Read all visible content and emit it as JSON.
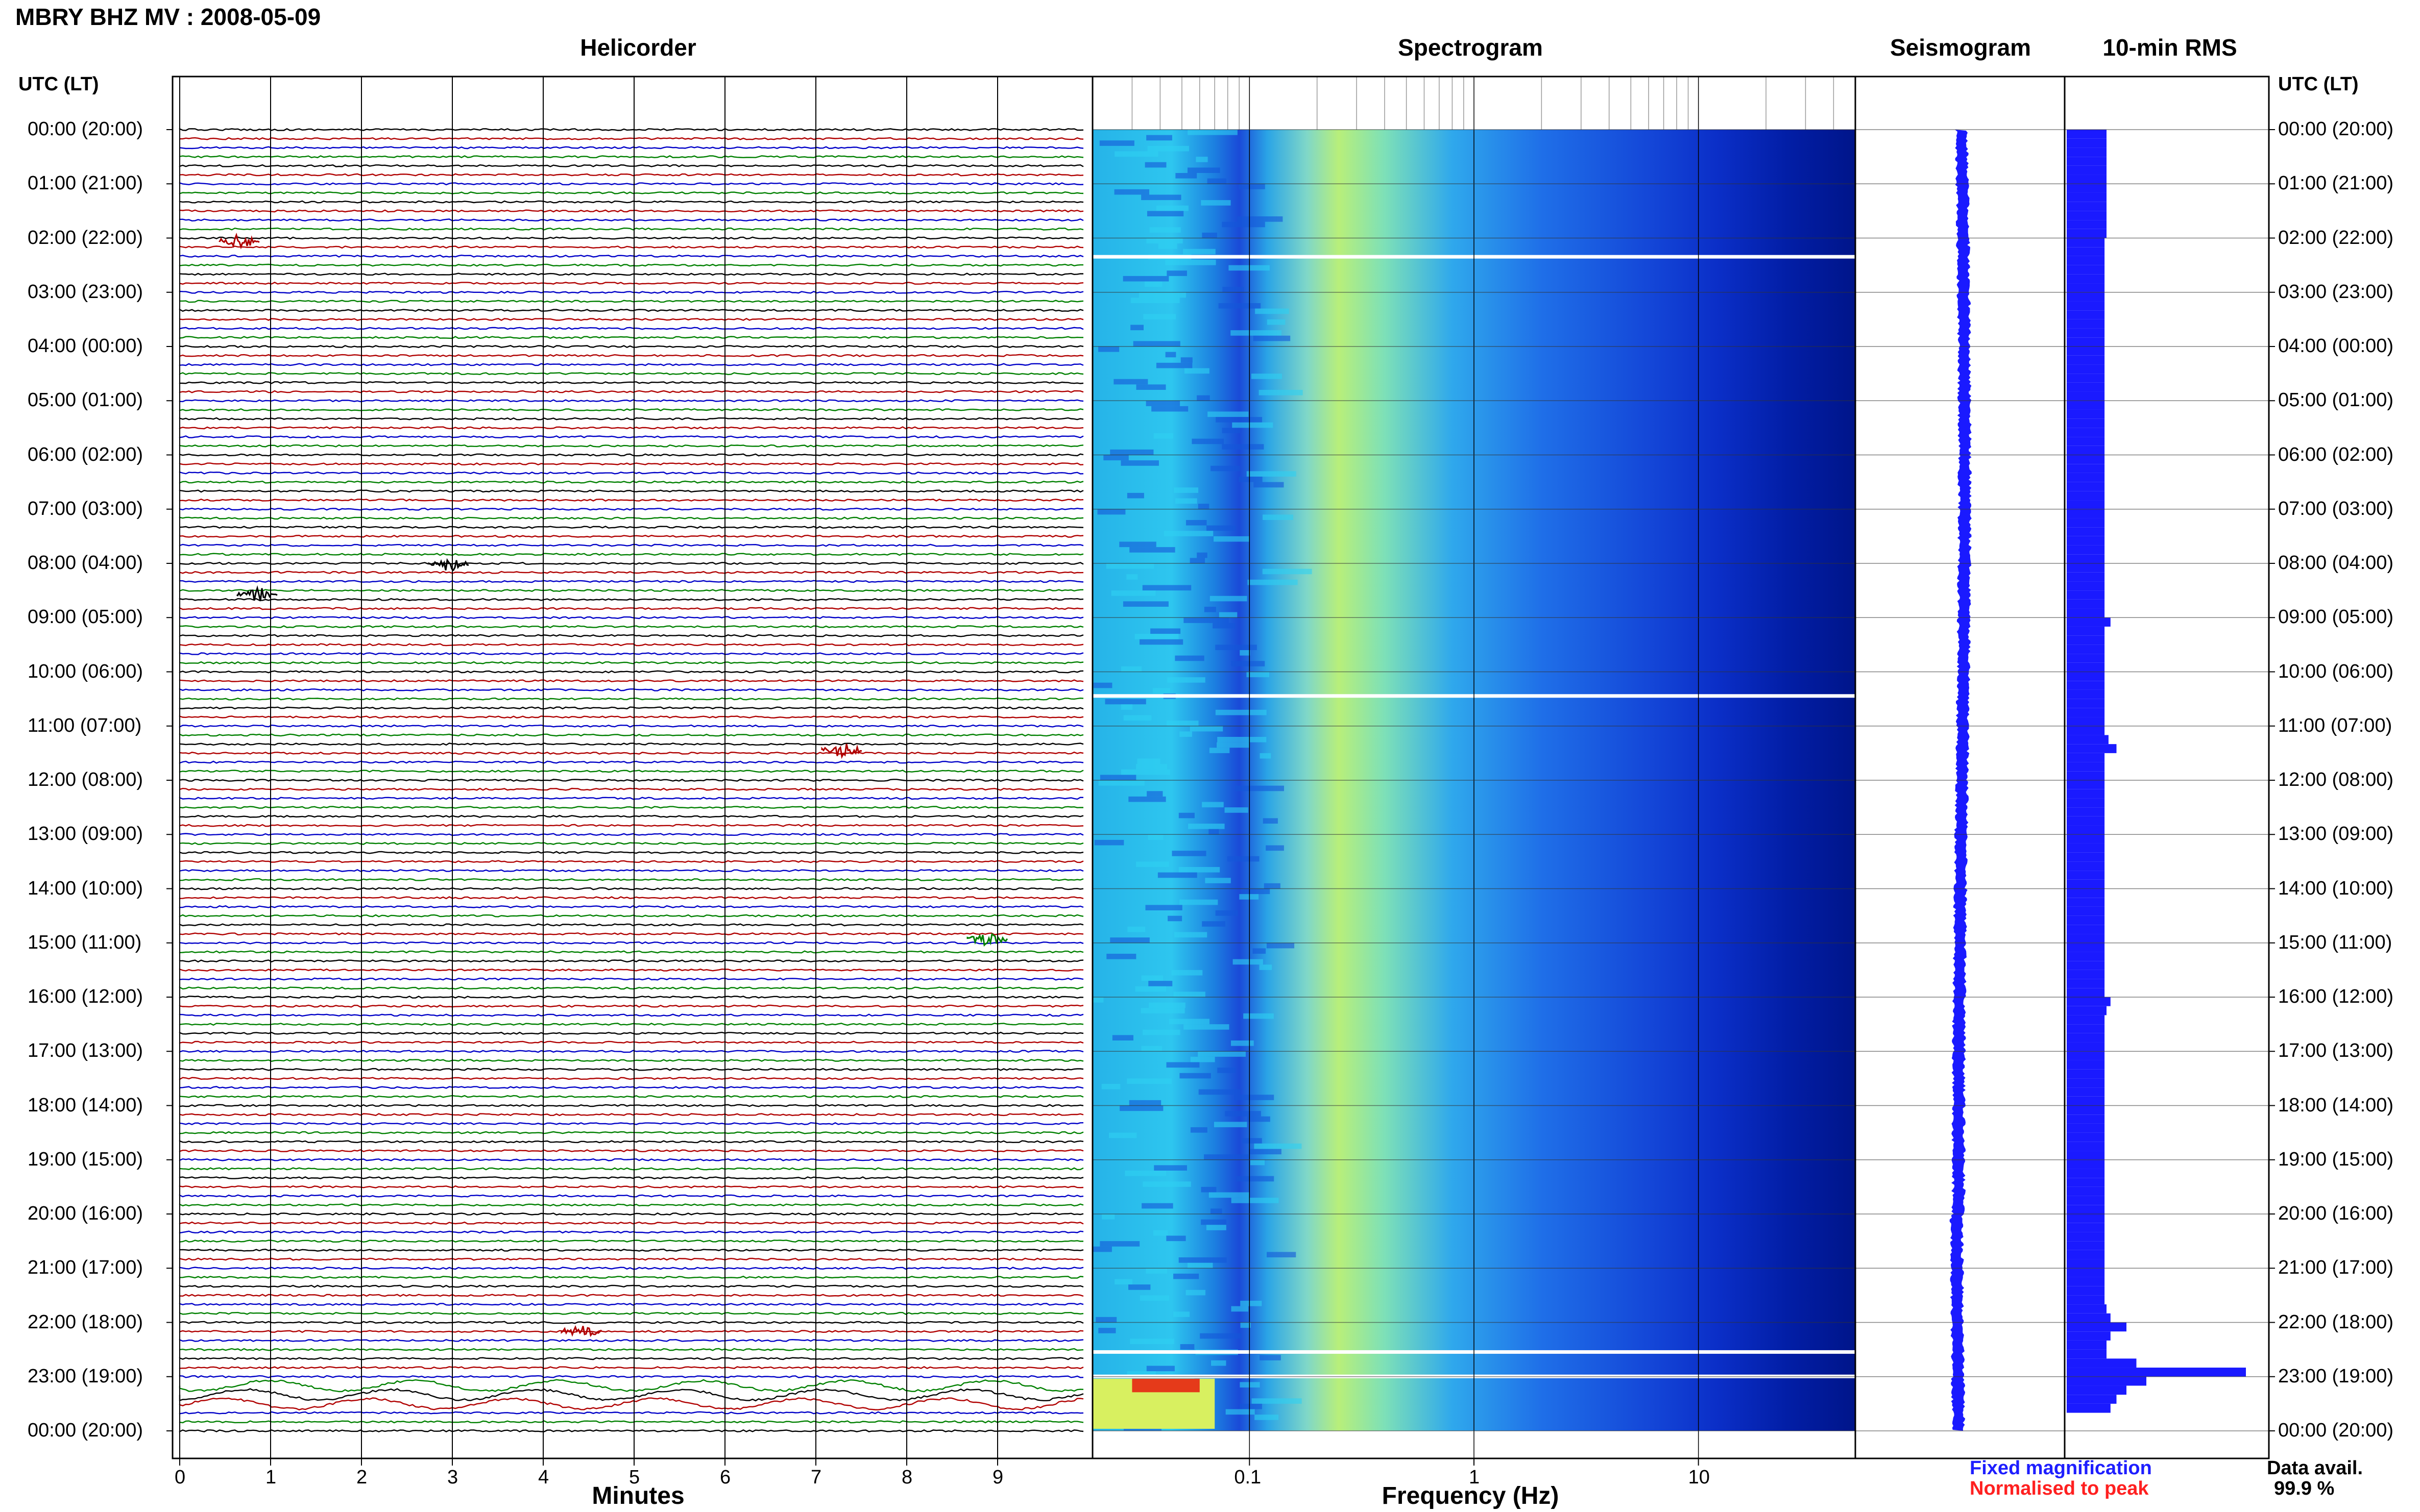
{
  "header": {
    "title": "MBRY BHZ MV : 2008-05-09"
  },
  "panels": {
    "helicorder": "Helicorder",
    "spectrogram": "Spectrogram",
    "seismogram": "Seismogram",
    "rms": "10-min RMS"
  },
  "axis_header_left": "UTC (LT)",
  "axis_header_right": "UTC (LT)",
  "time_labels": [
    "00:00 (20:00)",
    "01:00 (21:00)",
    "02:00 (22:00)",
    "03:00 (23:00)",
    "04:00 (00:00)",
    "05:00 (01:00)",
    "06:00 (02:00)",
    "07:00 (03:00)",
    "08:00 (04:00)",
    "09:00 (05:00)",
    "10:00 (06:00)",
    "11:00 (07:00)",
    "12:00 (08:00)",
    "13:00 (09:00)",
    "14:00 (10:00)",
    "15:00 (11:00)",
    "16:00 (12:00)",
    "17:00 (13:00)",
    "18:00 (14:00)",
    "19:00 (15:00)",
    "20:00 (16:00)",
    "21:00 (17:00)",
    "22:00 (18:00)",
    "23:00 (19:00)",
    "00:00 (20:00)"
  ],
  "helicorder_xaxis": {
    "label": "Minutes",
    "ticks": [
      "0",
      "1",
      "2",
      "3",
      "4",
      "5",
      "6",
      "7",
      "8",
      "9"
    ]
  },
  "spectrogram_xaxis": {
    "label": "Frequency (Hz)",
    "ticks": [
      "0.1",
      "1",
      "10"
    ],
    "scale": "log"
  },
  "legend": {
    "fixed": "Fixed magnification",
    "normalised": "Normalised to peak"
  },
  "availability": {
    "label": "Data avail.",
    "value": "99.9 %"
  },
  "colors": {
    "trace_cycle": [
      "#000000",
      "#b00000",
      "#0000c8",
      "#008000"
    ],
    "rms": "#1a1aff",
    "seismogram": "#1a1aff"
  },
  "chart_data": {
    "type": "heatmap",
    "title": "MBRY BHZ MV : 2008-05-09",
    "helicorder_rows_per_hour": 6,
    "helicorder_minutes_per_row": 10,
    "spectrogram_freq_range_hz": [
      0.02,
      50
    ],
    "events": [
      {
        "time": "02:10",
        "panel": "helicorder"
      },
      {
        "time": "08:50",
        "panel": "helicorder"
      },
      {
        "time": "11:30",
        "panel": "helicorder"
      },
      {
        "time": "15:50",
        "panel": "helicorder"
      },
      {
        "time": "22:00",
        "panel": "helicorder"
      }
    ],
    "rms_10min": [
      0.2,
      0.2,
      0.2,
      0.2,
      0.2,
      0.2,
      0.2,
      0.2,
      0.2,
      0.2,
      0.2,
      0.2,
      0.19,
      0.19,
      0.19,
      0.19,
      0.19,
      0.19,
      0.19,
      0.19,
      0.19,
      0.19,
      0.19,
      0.19,
      0.19,
      0.19,
      0.19,
      0.19,
      0.19,
      0.19,
      0.19,
      0.19,
      0.19,
      0.19,
      0.19,
      0.19,
      0.19,
      0.19,
      0.19,
      0.19,
      0.19,
      0.19,
      0.19,
      0.19,
      0.19,
      0.19,
      0.19,
      0.19,
      0.19,
      0.19,
      0.19,
      0.19,
      0.19,
      0.19,
      0.22,
      0.19,
      0.19,
      0.19,
      0.19,
      0.19,
      0.19,
      0.19,
      0.19,
      0.19,
      0.19,
      0.19,
      0.19,
      0.21,
      0.25,
      0.19,
      0.19,
      0.19,
      0.19,
      0.19,
      0.19,
      0.19,
      0.19,
      0.19,
      0.19,
      0.19,
      0.19,
      0.19,
      0.19,
      0.19,
      0.19,
      0.19,
      0.19,
      0.19,
      0.19,
      0.19,
      0.19,
      0.19,
      0.19,
      0.19,
      0.19,
      0.19,
      0.22,
      0.2,
      0.19,
      0.19,
      0.19,
      0.19,
      0.19,
      0.19,
      0.19,
      0.19,
      0.19,
      0.19,
      0.19,
      0.19,
      0.19,
      0.19,
      0.19,
      0.19,
      0.19,
      0.19,
      0.19,
      0.19,
      0.19,
      0.19,
      0.19,
      0.19,
      0.19,
      0.19,
      0.19,
      0.19,
      0.19,
      0.19,
      0.19,
      0.19,
      0.2,
      0.22,
      0.3,
      0.22,
      0.2,
      0.2,
      0.35,
      0.9,
      0.4,
      0.3,
      0.25,
      0.22
    ]
  }
}
